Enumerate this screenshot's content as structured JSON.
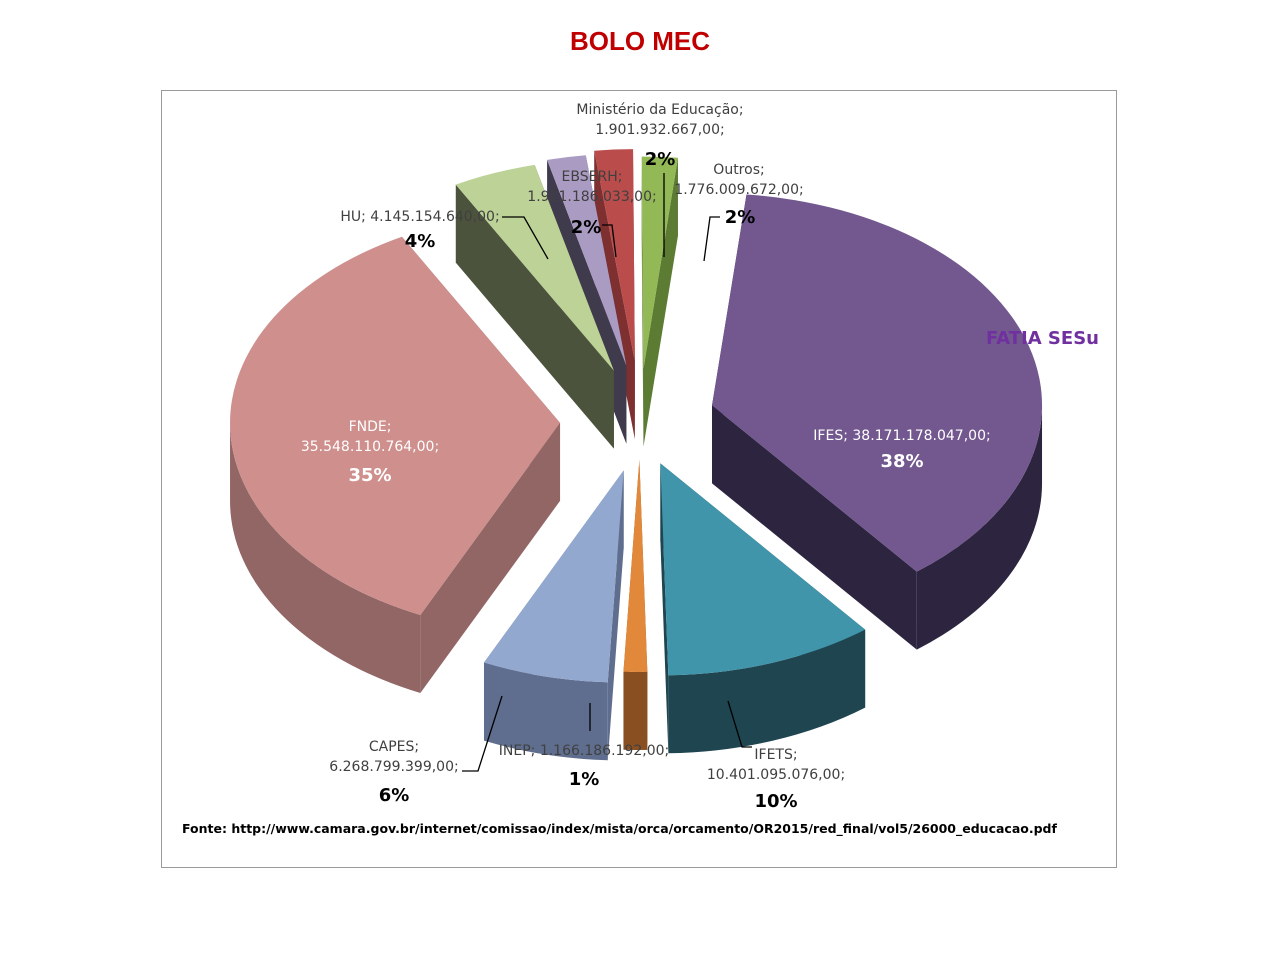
{
  "title": "BOLO MEC",
  "annotation": "FATIA SESu",
  "source": "Fonte: http://www.camara.gov.br/internet/comissao/index/mista/orca/orcamento/OR2015/red_final/vol5/26000_educacao.pdf",
  "chart_data": {
    "type": "pie",
    "three_d": true,
    "exploded": true,
    "slices": [
      {
        "name": "IFES",
        "label_lines": [
          "IFES; 38.171.178.047,00;"
        ],
        "value": 38171178047.0,
        "percent_label": "38%",
        "color": "#72588f",
        "side_color": "#2d2540"
      },
      {
        "name": "IFETS",
        "label_lines": [
          "IFETS;",
          "10.401.095.076,00;"
        ],
        "value": 10401095076.0,
        "percent_label": "10%",
        "color": "#4095ab",
        "side_color": "#1f4550"
      },
      {
        "name": "INEP",
        "label_lines": [
          "INEP; 1.166.186.192,00;"
        ],
        "value": 1166186192.0,
        "percent_label": "1%",
        "color": "#e2883a",
        "side_color": "#8a4f20"
      },
      {
        "name": "CAPES",
        "label_lines": [
          "CAPES;",
          "6.268.799.399,00;"
        ],
        "value": 6268799399.0,
        "percent_label": "6%",
        "color": "#93a8cf",
        "side_color": "#5f6e8e"
      },
      {
        "name": "FNDE",
        "label_lines": [
          "FNDE;",
          "35.548.110.764,00;"
        ],
        "value": 35548110764.0,
        "percent_label": "35%",
        "color": "#ce8f8d",
        "side_color": "#916665"
      },
      {
        "name": "HU",
        "label_lines": [
          "HU; 4.145.154.640,00;"
        ],
        "value": 4145154640.0,
        "percent_label": "4%",
        "color": "#bdd297",
        "side_color": "#4b533d"
      },
      {
        "name": "EBSERH",
        "label_lines": [
          "EBSERH;",
          "1.921.186.033,00;"
        ],
        "value": 1921186033.0,
        "percent_label": "2%",
        "color": "#aa9bc3",
        "side_color": "#3f3a4c"
      },
      {
        "name": "Ministério da Educação",
        "label_lines": [
          "Ministério da Educação;",
          "1.901.932.667,00;"
        ],
        "value": 1901932667.0,
        "percent_label": "2%",
        "color": "#bb4c4c",
        "side_color": "#7e2f2f"
      },
      {
        "name": "Outros",
        "label_lines": [
          "Outros;",
          "1.776.009.672,00;"
        ],
        "value": 1776009672.0,
        "percent_label": "2%",
        "color": "#93b957",
        "side_color": "#5c7c33"
      }
    ]
  }
}
